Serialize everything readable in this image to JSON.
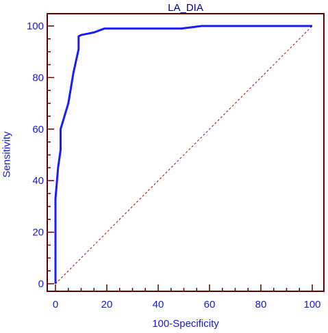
{
  "chart_data": {
    "type": "line",
    "title": "LA_DIA",
    "xlabel": "100-Specificity",
    "ylabel": "Sensitivity",
    "xlim": [
      0,
      100
    ],
    "ylim": [
      0,
      100
    ],
    "x_ticks": [
      "0",
      "20",
      "40",
      "60",
      "80",
      "100"
    ],
    "y_ticks": [
      "0",
      "20",
      "40",
      "60",
      "80",
      "100"
    ],
    "grid": false,
    "legend": "none",
    "series": [
      {
        "x": [
          0,
          0,
          1,
          2,
          2,
          5,
          7,
          9,
          9,
          10,
          15,
          19,
          25,
          40,
          49,
          57,
          100
        ],
        "y": [
          0,
          33,
          45,
          52,
          60,
          70,
          82,
          91,
          96,
          96.5,
          97.5,
          99,
          99,
          99,
          99,
          100,
          100
        ]
      }
    ],
    "reference_line": {
      "x": [
        0,
        100
      ],
      "y": [
        0,
        100
      ],
      "style": "dashed"
    },
    "colors": {
      "series": "#1a1aff",
      "reference": "#a00000",
      "axes": "#5c0000",
      "text": "#1a1acd"
    }
  }
}
